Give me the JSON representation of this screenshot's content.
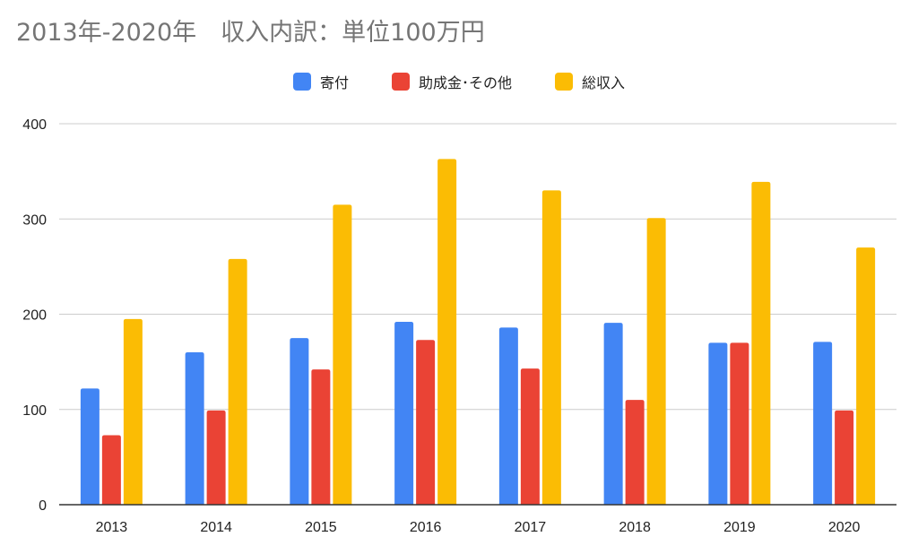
{
  "colors": {
    "donations": "#4285F4",
    "grants_other": "#EA4335",
    "total_income": "#FBBC04",
    "grid": "#CCCCCC",
    "axis": "#333333"
  },
  "chart_data": {
    "type": "bar",
    "title": "2013年-2020年　収入内訳：単位100万円",
    "xlabel": "",
    "ylabel": "",
    "categories": [
      "2013",
      "2014",
      "2015",
      "2016",
      "2017",
      "2018",
      "2019",
      "2020"
    ],
    "series": [
      {
        "name": "寄付",
        "key": "donations",
        "values": [
          122,
          160,
          175,
          192,
          186,
          191,
          170,
          171
        ]
      },
      {
        "name": "助成金･その他",
        "key": "grants_other",
        "values": [
          73,
          99,
          142,
          173,
          143,
          110,
          170,
          99
        ]
      },
      {
        "name": "総収入",
        "key": "total_income",
        "values": [
          195,
          258,
          315,
          363,
          330,
          301,
          339,
          270
        ]
      }
    ],
    "ylim": [
      0,
      400
    ],
    "yticks": [
      0,
      100,
      200,
      300,
      400
    ],
    "grid": true,
    "legend_position": "top-center"
  }
}
